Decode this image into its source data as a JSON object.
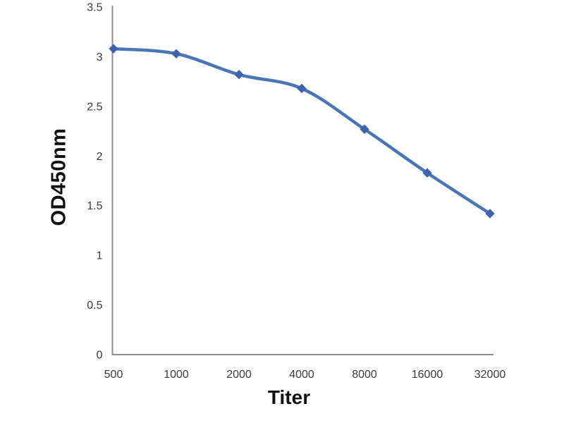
{
  "chart_data": {
    "type": "line",
    "title": "",
    "xlabel": "Titer",
    "ylabel": "OD450nm",
    "categories": [
      "500",
      "1000",
      "2000",
      "4000",
      "8000",
      "16000",
      "32000"
    ],
    "series": [
      {
        "name": "OD450nm",
        "values": [
          3.08,
          3.03,
          2.82,
          2.68,
          2.27,
          1.83,
          1.42
        ]
      }
    ],
    "ylim": [
      0,
      3.5
    ],
    "y_tick_values": [
      3.5,
      3,
      2.5,
      2,
      1.5,
      1,
      0.5,
      0
    ],
    "y_tick_labels": [
      "3.5",
      "3",
      "2.5",
      "2",
      "1.5",
      "1",
      "0.5",
      "0"
    ],
    "grid": false,
    "legend": "none",
    "line_smoothed": true,
    "marker_shape": "diamond",
    "colors": {
      "line": "#4a76b5",
      "marker": "#3d63ad",
      "axis": "#8e8e8e",
      "tick_text": "#3a3a3a",
      "title_text": "#111111",
      "background": "#ffffff"
    }
  }
}
